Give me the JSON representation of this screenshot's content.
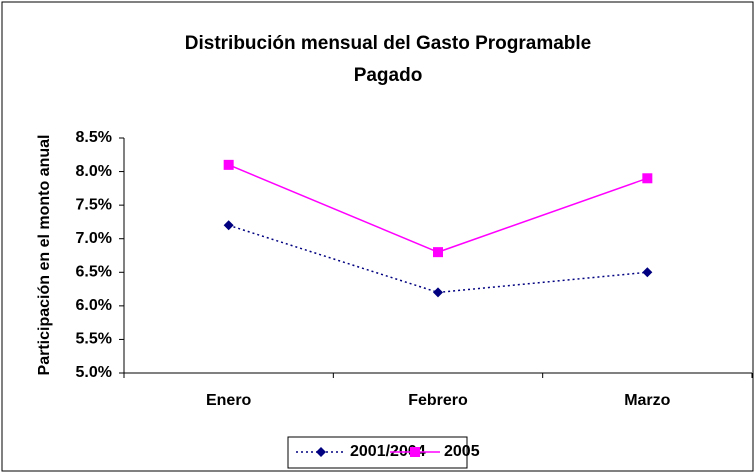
{
  "chart_data": {
    "type": "line",
    "title": "Distribución mensual del Gasto Programable Pagado",
    "y_label": "Participación en el monto anual",
    "categories": [
      "Enero",
      "Febrero",
      "Marzo"
    ],
    "series": [
      {
        "name": "2001/2004",
        "color": "#000080",
        "marker": "diamond",
        "dashed": true,
        "values": [
          7.2,
          6.2,
          6.5
        ]
      },
      {
        "name": "2005",
        "color": "#ff00ff",
        "marker": "square",
        "dashed": false,
        "values": [
          8.1,
          6.8,
          7.9
        ]
      }
    ],
    "ylim": [
      5,
      8.5
    ],
    "yticks": [
      {
        "value": 5,
        "label": "5.0%"
      },
      {
        "value": 5.5,
        "label": "5.5%"
      },
      {
        "value": 6,
        "label": "6.0%"
      },
      {
        "value": 6.5,
        "label": "6.5%"
      },
      {
        "value": 7,
        "label": "7.0%"
      },
      {
        "value": 7.5,
        "label": "7.5%"
      },
      {
        "value": 8,
        "label": "8.0%"
      },
      {
        "value": 8.5,
        "label": "8.5%"
      }
    ],
    "grid": false,
    "legend": "bottom"
  }
}
